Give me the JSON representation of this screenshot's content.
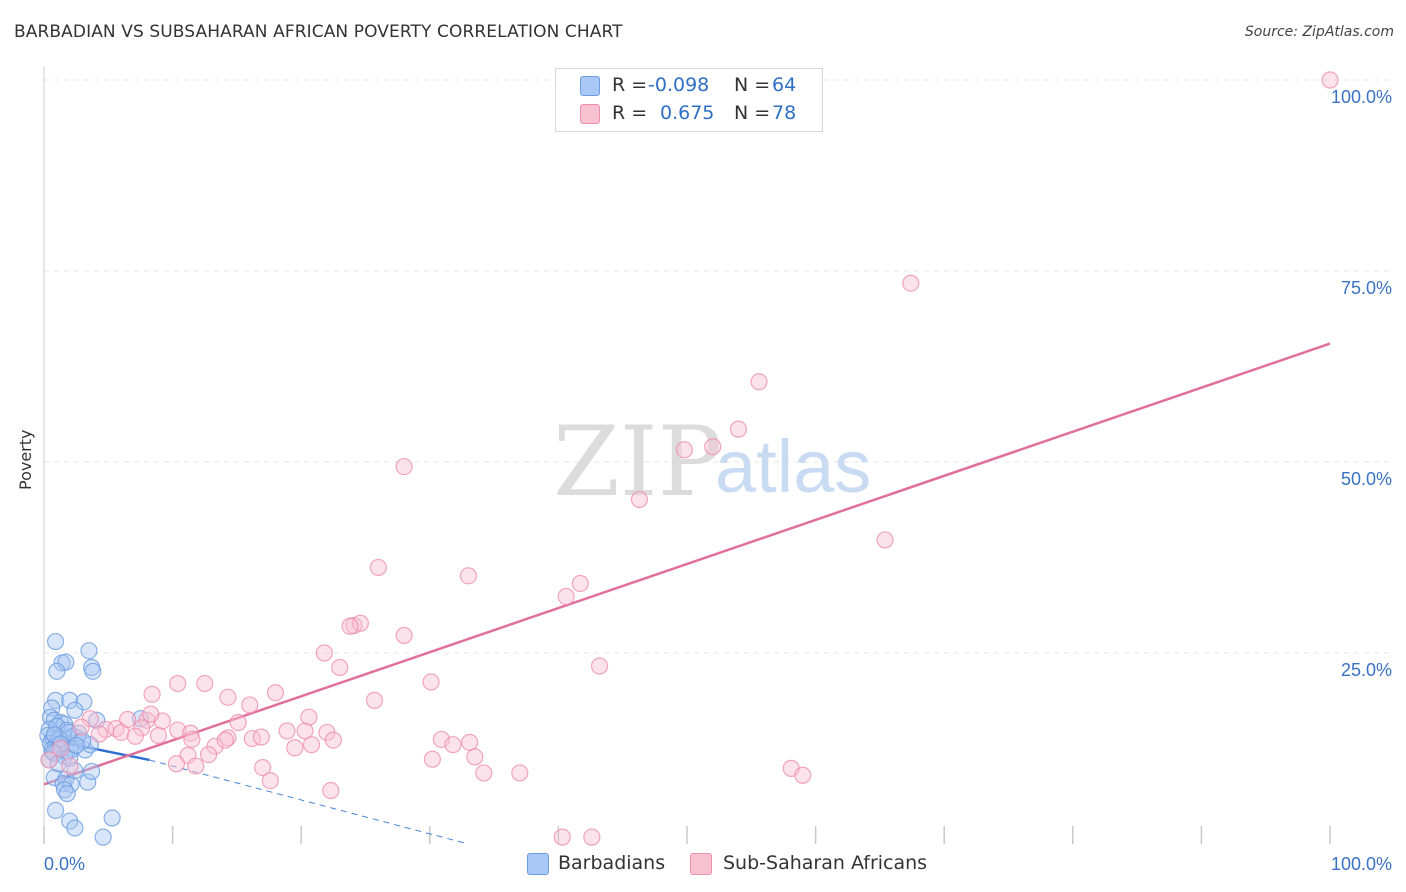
{
  "title": "BARBADIAN VS SUBSAHARAN AFRICAN POVERTY CORRELATION CHART",
  "source": "Source: ZipAtlas.com",
  "watermark": {
    "zip": "ZIP",
    "atlas": "atlas"
  },
  "legend": {
    "rows": [
      {
        "r_label": "R =",
        "r_value": "-0.098",
        "n_label": "N =",
        "n_value": "64",
        "color": "#aac8f5",
        "border": "#6d9de0"
      },
      {
        "r_label": "R =",
        "r_value": "0.675",
        "n_label": "N =",
        "n_value": "78",
        "color": "#f8c2d2",
        "border": "#ee8fae"
      }
    ]
  },
  "bottom_legend": [
    {
      "label": "Barbadians",
      "color": "#aac8f5",
      "border": "#6d9de0"
    },
    {
      "label": "Sub-Saharan Africans",
      "color": "#f8c2d2",
      "border": "#ee8fae"
    }
  ],
  "chart_data": {
    "type": "scatter",
    "ylabel": "Poverty",
    "xlabel": "",
    "xlim": [
      0,
      100
    ],
    "ylim": [
      0,
      100
    ],
    "x_tick_labels": [
      "0.0%",
      "100.0%"
    ],
    "y_ticks": [
      {
        "value": 25,
        "label": "25.0%"
      },
      {
        "value": 50,
        "label": "50.0%"
      },
      {
        "value": 75,
        "label": "75.0%"
      },
      {
        "value": 100,
        "label": "100.0%"
      }
    ],
    "grid": true,
    "legend_position": "top-center",
    "series": [
      {
        "name": "Barbadians",
        "color": "#6d9de0",
        "fill": "#aac8f5",
        "r": -0.098,
        "n": 64,
        "trend": {
          "x0": 0,
          "y0": 13.8,
          "x1": 8.2,
          "y1": 11.0,
          "dash_to_x": 33,
          "dash_to_y": 0
        },
        "points": [
          [
            0.9,
            26.5
          ],
          [
            3.5,
            25.3
          ],
          [
            1.4,
            23.7
          ],
          [
            1.7,
            23.8
          ],
          [
            3.7,
            23.1
          ],
          [
            1.0,
            22.6
          ],
          [
            3.8,
            22.6
          ],
          [
            0.9,
            18.8
          ],
          [
            2.0,
            18.8
          ],
          [
            3.1,
            18.6
          ],
          [
            0.6,
            17.8
          ],
          [
            2.4,
            17.5
          ],
          [
            0.5,
            16.6
          ],
          [
            4.1,
            16.2
          ],
          [
            7.5,
            16.4
          ],
          [
            0.8,
            16.2
          ],
          [
            1.3,
            15.9
          ],
          [
            1.6,
            15.7
          ],
          [
            0.4,
            15.0
          ],
          [
            1.0,
            15.4
          ],
          [
            1.8,
            14.9
          ],
          [
            0.3,
            14.2
          ],
          [
            0.7,
            13.8
          ],
          [
            1.2,
            13.6
          ],
          [
            1.5,
            13.4
          ],
          [
            2.0,
            13.9
          ],
          [
            2.3,
            14.1
          ],
          [
            2.6,
            13.9
          ],
          [
            0.5,
            13.2
          ],
          [
            0.9,
            12.9
          ],
          [
            1.1,
            12.7
          ],
          [
            1.4,
            12.5
          ],
          [
            0.6,
            12.3
          ],
          [
            1.8,
            12.0
          ],
          [
            2.2,
            12.4
          ],
          [
            0.8,
            11.8
          ],
          [
            1.6,
            11.5
          ],
          [
            2.0,
            11.2
          ],
          [
            0.4,
            11.0
          ],
          [
            3.2,
            12.3
          ],
          [
            3.6,
            13.0
          ],
          [
            1.2,
            13.8
          ],
          [
            2.7,
            14.5
          ],
          [
            1.9,
            14.6
          ],
          [
            0.8,
            14.3
          ],
          [
            1.3,
            13.1
          ],
          [
            3.0,
            13.5
          ],
          [
            2.5,
            12.9
          ],
          [
            0.7,
            12.0
          ],
          [
            0.8,
            8.7
          ],
          [
            1.7,
            8.5
          ],
          [
            1.5,
            7.9
          ],
          [
            2.1,
            7.8
          ],
          [
            3.4,
            8.1
          ],
          [
            3.7,
            9.5
          ],
          [
            2.4,
            9.6
          ],
          [
            1.6,
            7.1
          ],
          [
            1.8,
            6.6
          ],
          [
            0.9,
            4.4
          ],
          [
            2.0,
            3.0
          ],
          [
            2.4,
            2.1
          ],
          [
            5.3,
            3.4
          ],
          [
            4.6,
            0.9
          ],
          [
            1.1,
            10.5
          ]
        ]
      },
      {
        "name": "Sub-Saharan Africans",
        "color": "#ee8fae",
        "fill": "#f8c2d2",
        "r": 0.675,
        "n": 78,
        "trend": {
          "x0": 0,
          "y0": 7.8,
          "x1": 100,
          "y1": 65.5
        },
        "points": [
          [
            100.0,
            100.0
          ],
          [
            67.4,
            73.4
          ],
          [
            55.6,
            60.5
          ],
          [
            54.0,
            54.3
          ],
          [
            52.0,
            52.0
          ],
          [
            49.8,
            51.6
          ],
          [
            46.3,
            45.1
          ],
          [
            28.0,
            49.4
          ],
          [
            65.4,
            39.8
          ],
          [
            26.0,
            36.2
          ],
          [
            33.0,
            35.1
          ],
          [
            41.7,
            34.1
          ],
          [
            40.6,
            32.4
          ],
          [
            24.1,
            28.6
          ],
          [
            24.6,
            28.9
          ],
          [
            23.8,
            28.5
          ],
          [
            28.0,
            27.3
          ],
          [
            21.8,
            25.0
          ],
          [
            43.2,
            23.3
          ],
          [
            23.0,
            23.1
          ],
          [
            10.4,
            21.0
          ],
          [
            12.5,
            21.0
          ],
          [
            30.1,
            21.2
          ],
          [
            8.4,
            19.6
          ],
          [
            14.3,
            19.2
          ],
          [
            18.0,
            19.8
          ],
          [
            25.7,
            18.8
          ],
          [
            16.0,
            18.2
          ],
          [
            3.6,
            16.4
          ],
          [
            6.5,
            16.3
          ],
          [
            8.0,
            16.2
          ],
          [
            9.2,
            16.1
          ],
          [
            15.1,
            15.9
          ],
          [
            20.6,
            16.6
          ],
          [
            2.9,
            15.3
          ],
          [
            4.8,
            15.0
          ],
          [
            5.6,
            15.1
          ],
          [
            7.6,
            15.2
          ],
          [
            10.4,
            14.9
          ],
          [
            11.4,
            14.5
          ],
          [
            18.9,
            14.8
          ],
          [
            20.3,
            14.8
          ],
          [
            22.0,
            14.6
          ],
          [
            4.3,
            14.4
          ],
          [
            6.0,
            14.6
          ],
          [
            7.1,
            14.1
          ],
          [
            8.9,
            14.2
          ],
          [
            11.5,
            13.7
          ],
          [
            14.3,
            13.9
          ],
          [
            16.2,
            13.8
          ],
          [
            16.9,
            14.0
          ],
          [
            22.5,
            13.6
          ],
          [
            13.3,
            12.8
          ],
          [
            19.5,
            12.6
          ],
          [
            20.8,
            13.0
          ],
          [
            30.9,
            13.7
          ],
          [
            33.1,
            13.3
          ],
          [
            31.8,
            13.0
          ],
          [
            14.1,
            13.6
          ],
          [
            11.2,
            11.6
          ],
          [
            12.8,
            11.7
          ],
          [
            30.2,
            11.1
          ],
          [
            33.5,
            11.4
          ],
          [
            10.3,
            10.5
          ],
          [
            11.8,
            10.2
          ],
          [
            17.0,
            10.0
          ],
          [
            34.2,
            9.3
          ],
          [
            37.0,
            9.3
          ],
          [
            17.6,
            8.3
          ],
          [
            22.3,
            7.0
          ],
          [
            58.1,
            9.9
          ],
          [
            59.0,
            9.0
          ],
          [
            0.4,
            11.0
          ],
          [
            1.3,
            12.5
          ],
          [
            2.0,
            10.2
          ],
          [
            42.6,
            0.9
          ],
          [
            40.3,
            0.9
          ],
          [
            8.3,
            17.0
          ]
        ]
      }
    ]
  }
}
